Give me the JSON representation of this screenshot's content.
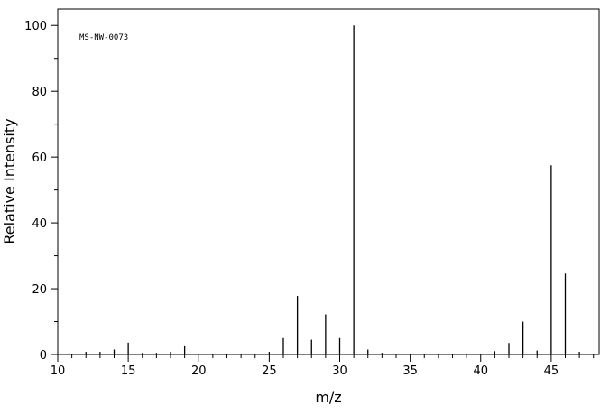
{
  "chart_data": {
    "type": "stem",
    "annotation": "MS-NW-0073",
    "xlabel": "m/z",
    "ylabel": "Relative Intensity",
    "x": [
      12,
      13,
      14,
      15,
      16,
      17,
      18,
      19,
      25,
      26,
      27,
      28,
      29,
      30,
      31,
      32,
      33,
      41,
      42,
      43,
      44,
      45,
      46,
      47
    ],
    "values": [
      0.8,
      0.8,
      1.5,
      3.6,
      0.5,
      0.5,
      0.8,
      2.5,
      0.8,
      5,
      17.8,
      4.5,
      12.2,
      5,
      100,
      1.5,
      0.5,
      1,
      3.5,
      10,
      1.2,
      57.5,
      24.6,
      0.8
    ],
    "color": "#000000",
    "xlim": [
      10,
      48.4
    ],
    "ylim": [
      0,
      105
    ],
    "xticks": [
      10,
      15,
      20,
      25,
      30,
      35,
      40,
      45
    ],
    "xminorticks": [
      11,
      12,
      13,
      14,
      16,
      17,
      18,
      19,
      21,
      22,
      23,
      24,
      26,
      27,
      28,
      29,
      31,
      32,
      33,
      34,
      36,
      37,
      38,
      39,
      41,
      42,
      43,
      44,
      46,
      47,
      48
    ],
    "yticks": [
      0,
      20,
      40,
      60,
      80,
      100
    ],
    "yminorticks": [
      10,
      30,
      50,
      70,
      90
    ]
  }
}
